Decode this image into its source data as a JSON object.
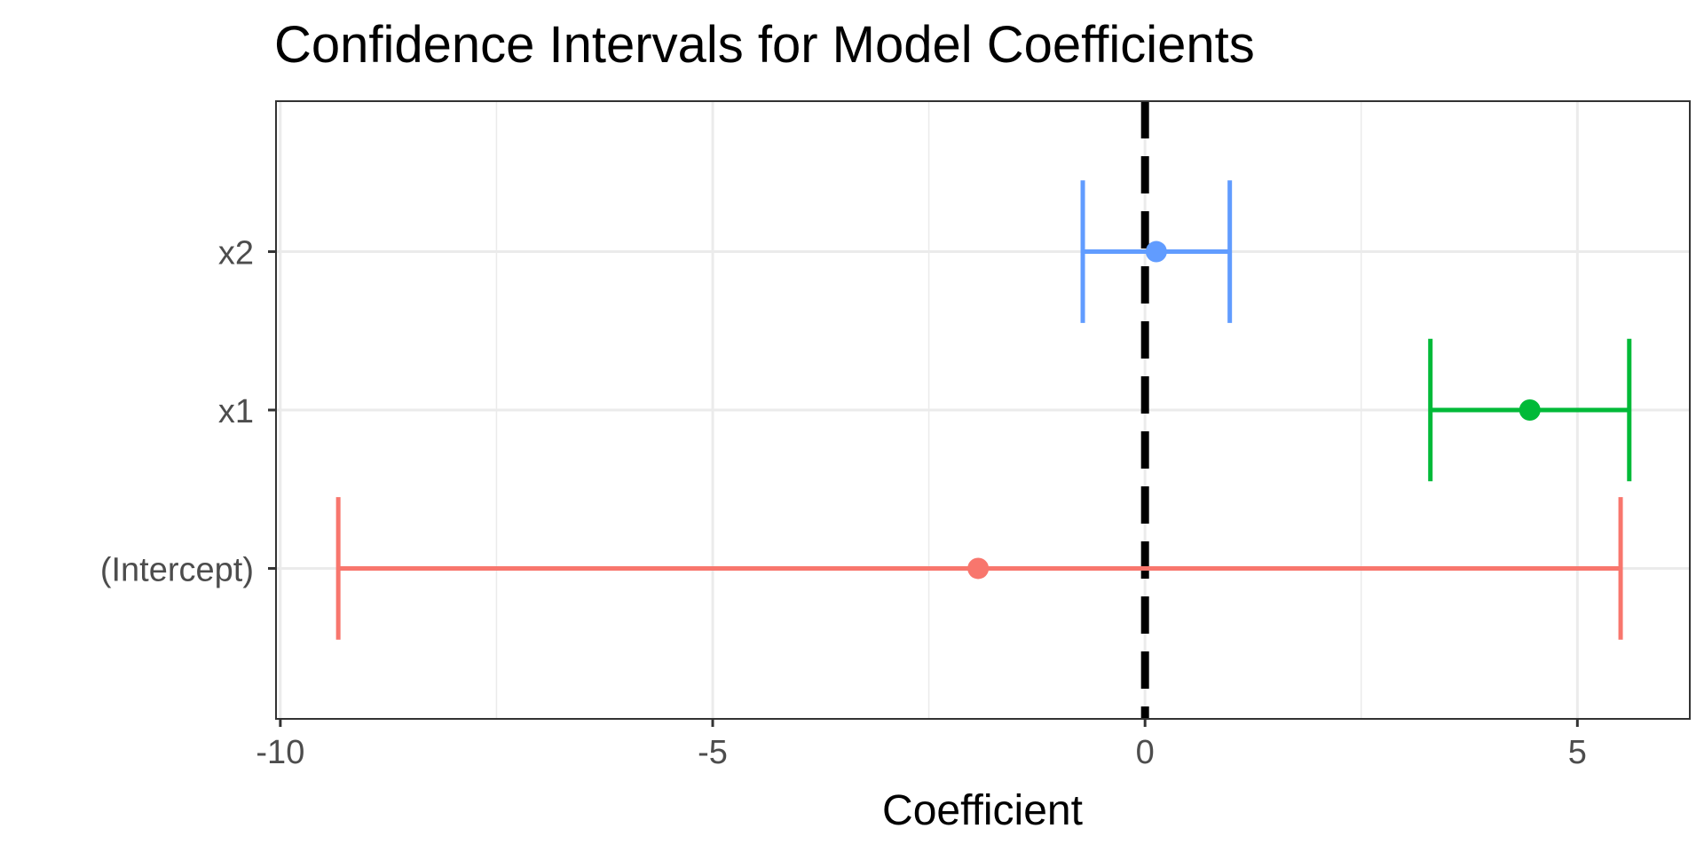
{
  "chart_data": {
    "type": "errorbar",
    "title": "Confidence Intervals for Model Coefficients",
    "xlabel": "Coefficient",
    "ylabel": "",
    "xlim": [
      -10.05,
      6.3
    ],
    "x_ticks": [
      -10,
      -5,
      0,
      5
    ],
    "x_tick_labels": [
      "-10",
      "-5",
      "0",
      "5"
    ],
    "x_minor_gridlines": [
      -7.5,
      -2.5,
      2.5
    ],
    "reference_line": {
      "x": 0,
      "style": "dashed",
      "color": "#000000"
    },
    "grid": true,
    "legend": "none",
    "categories": [
      "(Intercept)",
      "x1",
      "x2"
    ],
    "series": [
      {
        "category": "(Intercept)",
        "estimate": -1.93,
        "lower": -9.33,
        "upper": 5.5,
        "color": "#F8766D"
      },
      {
        "category": "x1",
        "estimate": 4.45,
        "lower": 3.3,
        "upper": 5.6,
        "color": "#00BA38"
      },
      {
        "category": "x2",
        "estimate": 0.13,
        "lower": -0.72,
        "upper": 0.98,
        "color": "#619CFF"
      }
    ]
  }
}
